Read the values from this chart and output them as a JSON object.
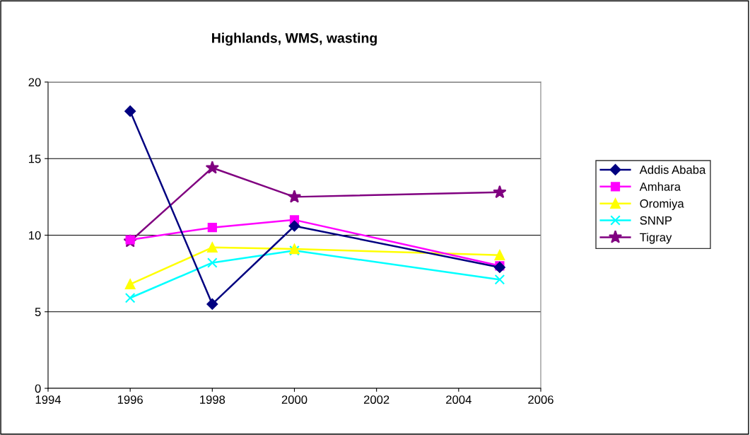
{
  "chart_data": {
    "type": "line",
    "title": "Highlands, WMS, wasting",
    "x": [
      1996,
      1998,
      2000,
      2005
    ],
    "series": [
      {
        "name": "Addis Ababa",
        "color": "#000080",
        "marker": "diamond",
        "values": [
          18.1,
          5.5,
          10.6,
          7.9
        ]
      },
      {
        "name": "Amhara",
        "color": "#ff00ff",
        "marker": "square",
        "values": [
          9.7,
          10.5,
          11.0,
          8.0
        ]
      },
      {
        "name": "Oromiya",
        "color": "#ffff00",
        "marker": "triangle",
        "values": [
          6.8,
          9.2,
          9.1,
          8.7
        ]
      },
      {
        "name": "SNNP",
        "color": "#00ffff",
        "marker": "cross",
        "values": [
          5.9,
          8.2,
          9.0,
          7.1
        ]
      },
      {
        "name": "Tigray",
        "color": "#800080",
        "marker": "star",
        "values": [
          9.6,
          14.4,
          12.5,
          12.8
        ]
      }
    ],
    "xlim": [
      1994,
      2006
    ],
    "xticks": [
      1994,
      1996,
      1998,
      2000,
      2002,
      2004,
      2006
    ],
    "ylim": [
      0,
      20
    ],
    "yticks": [
      0,
      5,
      10,
      15,
      20
    ],
    "grid": "y",
    "legend": "right",
    "line_style": "solid"
  }
}
